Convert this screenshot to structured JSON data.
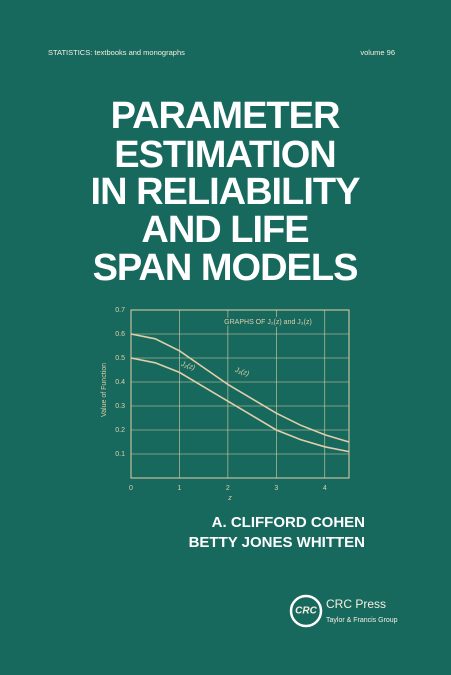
{
  "header": {
    "series": "STATISTICS: textbooks and monographs",
    "volume": "volume 96"
  },
  "title_lines": [
    "PARAMETER",
    "ESTIMATION",
    "IN RELIABILITY",
    "AND LIFE",
    "SPAN MODELS"
  ],
  "chart_data": {
    "type": "line",
    "title": "GRAPHS OF J₂(z) and J₃(z)",
    "x_label": "z",
    "y_label": "Value of Function",
    "x": [
      0,
      0.5,
      1,
      1.5,
      2,
      2.5,
      3,
      3.5,
      4,
      4.5
    ],
    "series": [
      {
        "name": "J₃(z)",
        "color": "#e0cfa9",
        "values": [
          0.6,
          0.58,
          0.53,
          0.46,
          0.39,
          0.33,
          0.27,
          0.22,
          0.18,
          0.15
        ]
      },
      {
        "name": "J₂(z)",
        "color": "#e0cfa9",
        "values": [
          0.5,
          0.48,
          0.44,
          0.38,
          0.32,
          0.26,
          0.2,
          0.16,
          0.13,
          0.11
        ]
      }
    ],
    "xlim": [
      0,
      4.5
    ],
    "ylim": [
      0,
      0.7
    ],
    "xticks": [
      0,
      1,
      2,
      3,
      4
    ],
    "yticks": [
      0.1,
      0.2,
      0.3,
      0.4,
      0.5,
      0.6,
      0.7
    ],
    "grid": true
  },
  "authors": [
    "A. CLIFFORD COHEN",
    "BETTY JONES WHITTEN"
  ],
  "publisher": {
    "logo": "CRC",
    "name": "CRC Press",
    "group": "Taylor & Francis Group"
  }
}
